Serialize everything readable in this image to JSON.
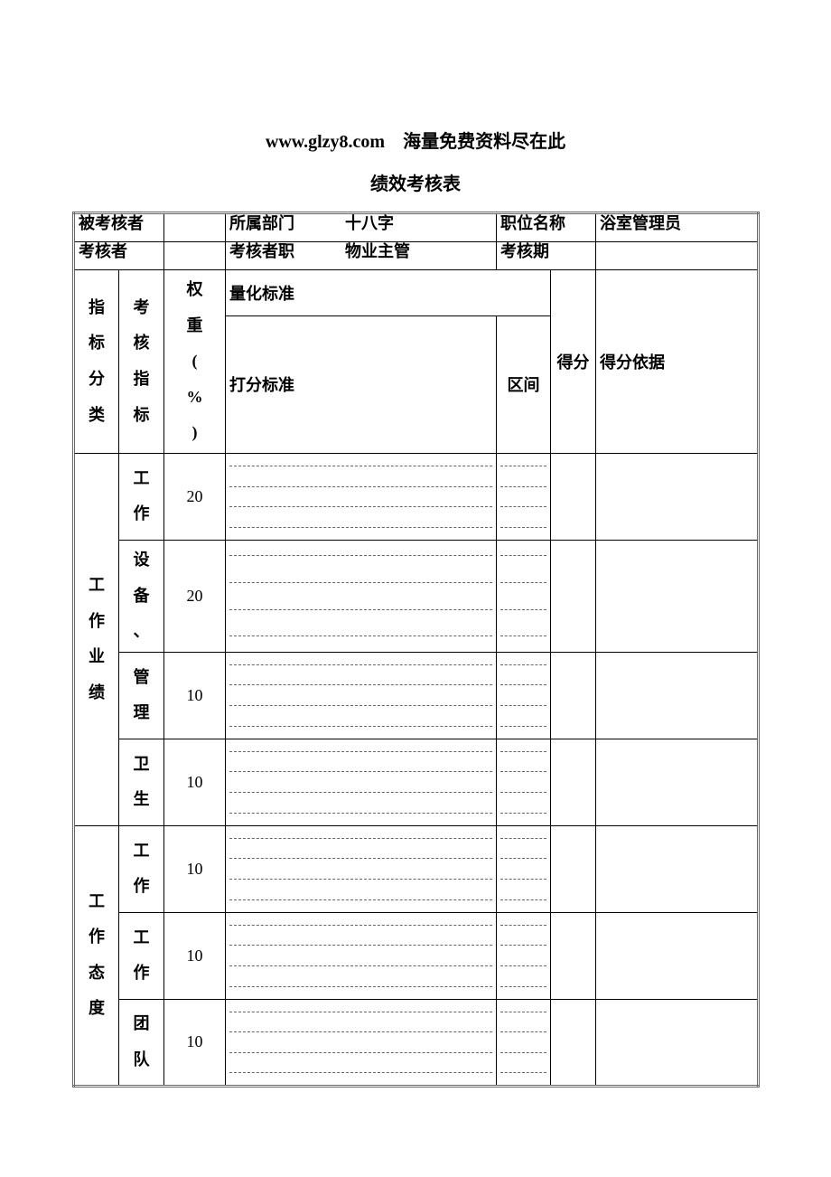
{
  "header": {
    "site": "www.glzy8.com",
    "slogan": "海量免费资料尽在此"
  },
  "title": "绩效考核表",
  "info": {
    "row1": {
      "c1_label": "被考核者",
      "c2_label": "",
      "c3_label": "所属部门",
      "c4_label": "十八字",
      "c5_label": "职位名称",
      "c6_label": "浴室管理员"
    },
    "row2": {
      "c1_label": "考核者",
      "c2_label": "",
      "c3_label": "考核者职",
      "c4_label": "物业主管",
      "c5_label": "考核期",
      "c6_label": ""
    }
  },
  "header_cells": {
    "category": "指标分类",
    "indicator": "考核指标",
    "weight": "权重(%)",
    "quant_std": "量化标准",
    "score_std": "打分标准",
    "interval": "区间",
    "score": "得分",
    "basis": "得分依据"
  },
  "groups": [
    {
      "category": "工作业绩",
      "items": [
        {
          "indicator": "工作",
          "weight": "20"
        },
        {
          "indicator": "设备、",
          "weight": "20"
        },
        {
          "indicator": "管理",
          "weight": "10"
        },
        {
          "indicator": "卫生",
          "weight": "10"
        }
      ]
    },
    {
      "category": "工作态度",
      "items": [
        {
          "indicator": "工作",
          "weight": "10"
        },
        {
          "indicator": "工作",
          "weight": "10"
        },
        {
          "indicator": "团队",
          "weight": "10"
        }
      ]
    }
  ],
  "style": {
    "border_color": "#000000",
    "outer_border": "#666666",
    "dash_color": "#666666",
    "dash_lines_per_cell": 4
  }
}
